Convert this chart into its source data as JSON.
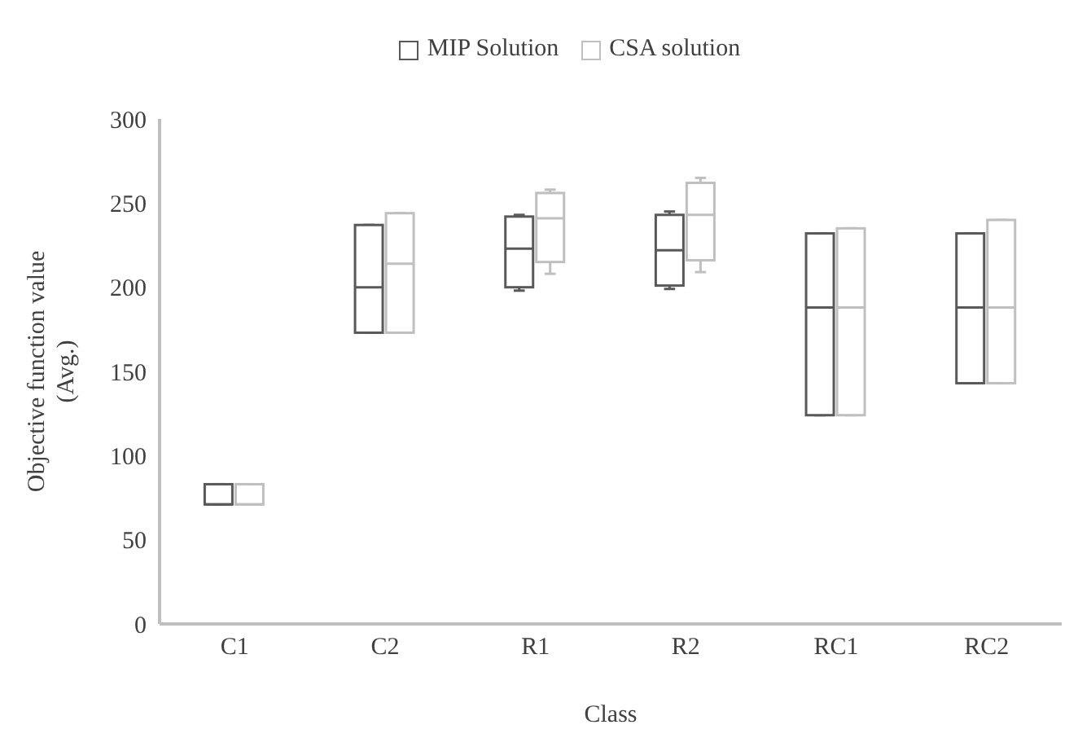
{
  "chart_data": {
    "type": "box",
    "xlabel": "Class",
    "ylabel": "Objective function value (Avg.)",
    "categories": [
      "C1",
      "C2",
      "R1",
      "R2",
      "RC1",
      "RC2"
    ],
    "ylim": [
      0,
      300
    ],
    "yticks": [
      0,
      50,
      100,
      150,
      200,
      250,
      300
    ],
    "grid": false,
    "legend": "top",
    "series": [
      {
        "name": "MIP Solution",
        "color": "#595959",
        "boxes": [
          {
            "low": 71,
            "q1": 71,
            "median": 71,
            "q3": 83,
            "high": 83
          },
          {
            "low": 173,
            "q1": 173,
            "median": 200,
            "q3": 237,
            "high": 237
          },
          {
            "low": 198,
            "q1": 200,
            "median": 223,
            "q3": 242,
            "high": 243
          },
          {
            "low": 199,
            "q1": 201,
            "median": 222,
            "q3": 243,
            "high": 245
          },
          {
            "low": 124,
            "q1": 124,
            "median": 188,
            "q3": 232,
            "high": 232
          },
          {
            "low": 143,
            "q1": 143,
            "median": 188,
            "q3": 232,
            "high": 232
          }
        ]
      },
      {
        "name": "CSA solution",
        "color": "#bfbfbf",
        "boxes": [
          {
            "low": 71,
            "q1": 71,
            "median": 71,
            "q3": 83,
            "high": 83
          },
          {
            "low": 173,
            "q1": 173,
            "median": 214,
            "q3": 244,
            "high": 244
          },
          {
            "low": 208,
            "q1": 215,
            "median": 241,
            "q3": 256,
            "high": 258
          },
          {
            "low": 209,
            "q1": 216,
            "median": 243,
            "q3": 262,
            "high": 265
          },
          {
            "low": 124,
            "q1": 124,
            "median": 188,
            "q3": 235,
            "high": 235
          },
          {
            "low": 143,
            "q1": 143,
            "median": 188,
            "q3": 240,
            "high": 240
          }
        ]
      }
    ]
  }
}
